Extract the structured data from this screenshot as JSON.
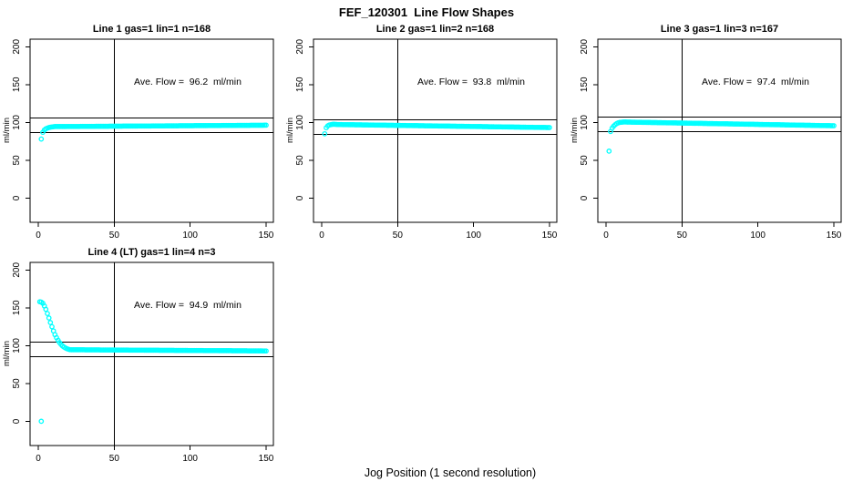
{
  "title": "FEF_120301  Line Flow Shapes",
  "xlabel": "Jog Position (1 second resolution)",
  "ylabel": "ml/min",
  "colors": {
    "marker": "#00FFFF",
    "axis": "#000000",
    "background": "#FFFFFF"
  },
  "chart_data": {
    "type": "scatter",
    "marker": "open-circle",
    "marker_color": "#00FFFF",
    "x_ticks": [
      0,
      50,
      100,
      150
    ],
    "y_ticks": [
      0,
      50,
      100,
      150,
      200
    ],
    "xlim": [
      -5.4,
      154.8
    ],
    "ylim": [
      -32,
      210
    ],
    "grid": false,
    "vline_x": 50,
    "panels": [
      {
        "title": "Line 1 gas=1 lin=1 n=168",
        "annotation": "Ave. Flow =  96.2  ml/min",
        "ave_flow": 96.2,
        "n": 168,
        "hlines": [
          105.8,
          86.6
        ],
        "points": [
          [
            2,
            78
          ],
          [
            3,
            87
          ],
          [
            4,
            90
          ],
          [
            5,
            91.5
          ],
          [
            6,
            92.5
          ],
          [
            7,
            93.2
          ],
          [
            8,
            93.7
          ],
          [
            9,
            94
          ],
          [
            10,
            94.3
          ]
        ],
        "trend": {
          "x0": 11,
          "x1": 150,
          "step": 1,
          "y0": 94.5,
          "y1": 96.3
        }
      },
      {
        "title": "Line 2 gas=1 lin=2 n=168",
        "annotation": "Ave. Flow =  93.8  ml/min",
        "ave_flow": 93.8,
        "n": 168,
        "hlines": [
          103.2,
          84.4
        ],
        "points": [
          [
            2,
            85
          ],
          [
            3,
            93
          ],
          [
            4,
            95.5
          ],
          [
            5,
            96.6
          ],
          [
            6,
            97.1
          ],
          [
            7,
            97.4
          ],
          [
            8,
            97.5
          ],
          [
            9,
            97.4
          ],
          [
            10,
            97.3
          ]
        ],
        "trend": {
          "x0": 11,
          "x1": 150,
          "step": 1,
          "y0": 97.2,
          "y1": 93.2
        }
      },
      {
        "title": "Line 3 gas=1 lin=3 n=167",
        "annotation": "Ave. Flow =  97.4  ml/min",
        "ave_flow": 97.4,
        "n": 167,
        "hlines": [
          107.1,
          87.7
        ],
        "points": [
          [
            2,
            62
          ],
          [
            3,
            88
          ],
          [
            4,
            92.5
          ],
          [
            5,
            95
          ],
          [
            6,
            97
          ],
          [
            7,
            98.5
          ],
          [
            8,
            99.4
          ],
          [
            9,
            99.9
          ],
          [
            10,
            100.2
          ],
          [
            11,
            100.4
          ],
          [
            12,
            100.5
          ]
        ],
        "trend": {
          "x0": 13,
          "x1": 150,
          "step": 1,
          "y0": 100.5,
          "y1": 95.6
        }
      },
      {
        "title": "Line 4 (LT) gas=1 lin=4 n=3",
        "annotation": "Ave. Flow =  94.9  ml/min",
        "ave_flow": 94.9,
        "n": 3,
        "hlines": [
          104.4,
          85.4
        ],
        "points": [
          [
            2,
            0
          ],
          [
            1,
            158
          ],
          [
            2,
            157.5
          ],
          [
            3,
            156
          ],
          [
            4,
            152.5
          ],
          [
            5,
            148
          ],
          [
            6,
            142.5
          ],
          [
            7,
            136.5
          ],
          [
            8,
            130.5
          ],
          [
            9,
            125
          ],
          [
            10,
            119.5
          ],
          [
            11,
            114.5
          ],
          [
            12,
            110.5
          ],
          [
            13,
            107
          ],
          [
            14,
            104
          ],
          [
            15,
            101.5
          ],
          [
            16,
            99.5
          ],
          [
            17,
            98
          ],
          [
            18,
            96.8
          ],
          [
            19,
            95.9
          ],
          [
            20,
            95.2
          ]
        ],
        "trend": {
          "x0": 21,
          "x1": 150,
          "step": 1,
          "y0": 94.6,
          "y1": 93.0
        }
      }
    ]
  }
}
